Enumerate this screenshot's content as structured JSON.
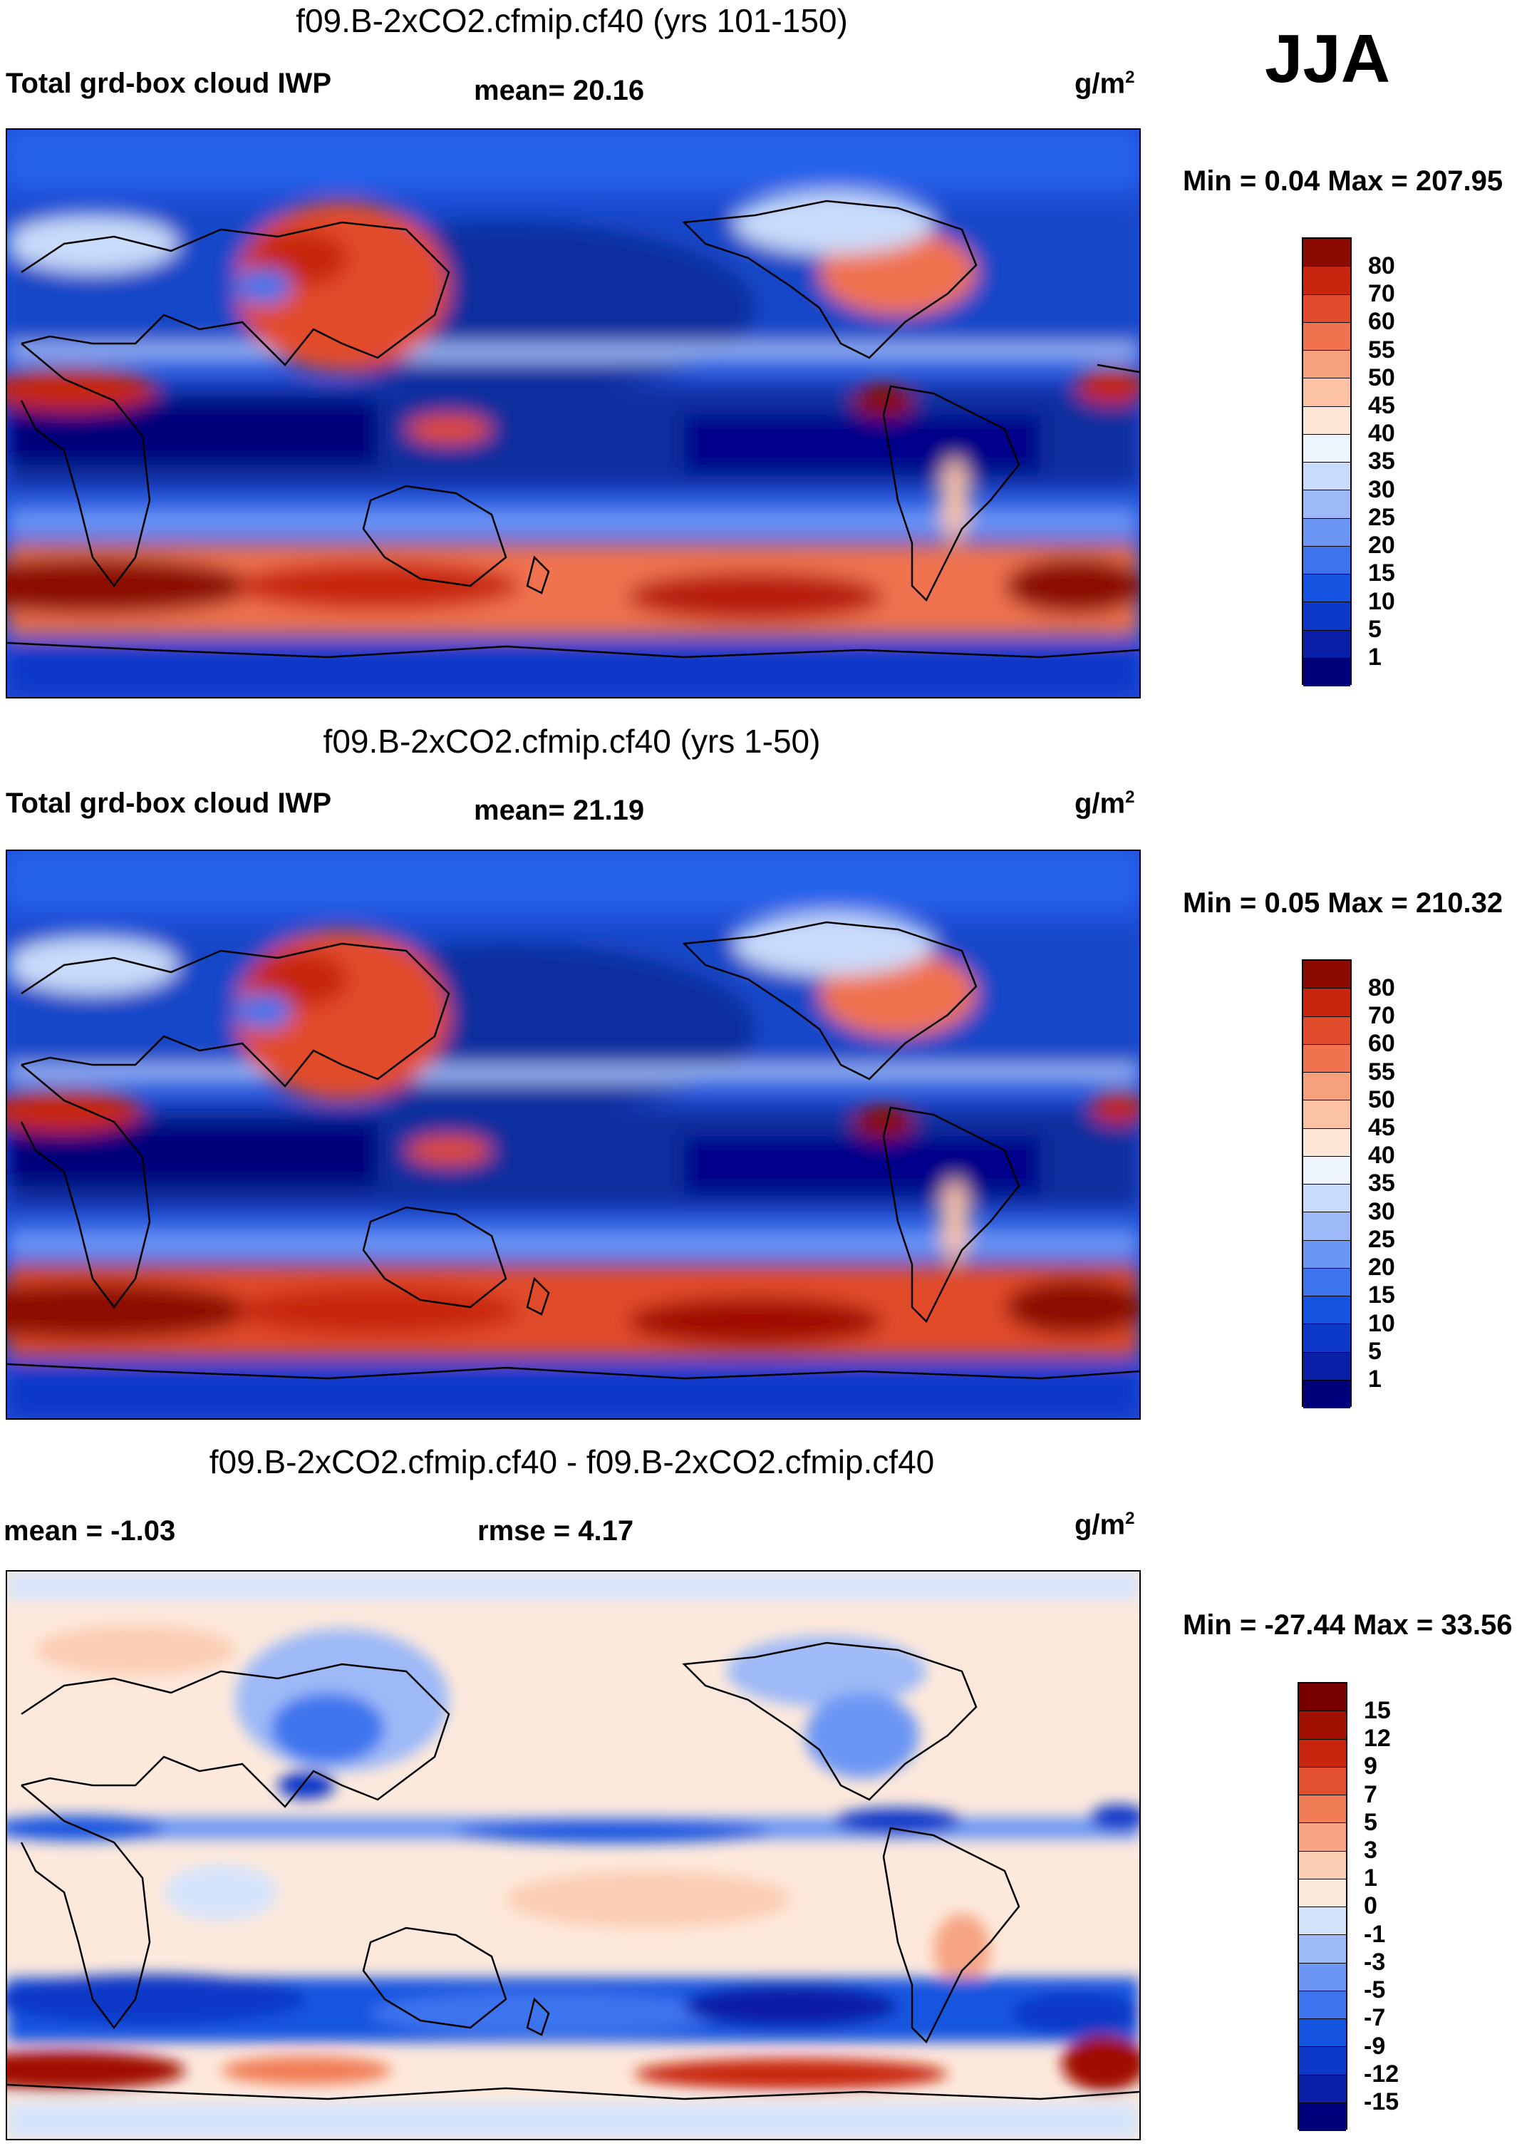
{
  "season": "JJA",
  "panels": [
    {
      "title": "f09.B-2xCO2.cfmip.cf40 (yrs 101-150)",
      "left_label": "Total grd-box cloud IWP",
      "center_label": "mean=  20.16",
      "units_base": "g/m",
      "units_exp": "2",
      "minmax": "Min =   0.04 Max = 207.95"
    },
    {
      "title": "f09.B-2xCO2.cfmip.cf40 (yrs 1-50)",
      "left_label": "Total grd-box cloud IWP",
      "center_label": "mean=  21.19",
      "units_base": "g/m",
      "units_exp": "2",
      "minmax": "Min =   0.05 Max = 210.32"
    },
    {
      "title": "f09.B-2xCO2.cfmip.cf40 - f09.B-2xCO2.cfmip.cf40",
      "left_label": "mean =  -1.03",
      "center_label": "rmse =    4.17",
      "units_base": "g/m",
      "units_exp": "2",
      "minmax": "Min = -27.44 Max =  33.56"
    }
  ],
  "chart_data": [
    {
      "type": "heatmap",
      "title": "f09.B-2xCO2.cfmip.cf40 (yrs 101-150)",
      "variable": "Total grd-box cloud IWP",
      "units": "g/m2",
      "mean": 20.16,
      "min": 0.04,
      "max": 207.95,
      "levels": [
        "1",
        "5",
        "10",
        "15",
        "20",
        "25",
        "30",
        "35",
        "40",
        "45",
        "50",
        "55",
        "60",
        "70",
        "80"
      ],
      "colors": [
        "#00007a",
        "#0a1fa8",
        "#0d39c8",
        "#1554e0",
        "#3d74ee",
        "#6c96f4",
        "#9db9f7",
        "#c9dbfa",
        "#eef4fd",
        "#fde6d6",
        "#fbc3a4",
        "#f6a07c",
        "#f0724f",
        "#e24b2c",
        "#c8260f",
        "#8c0a00"
      ]
    },
    {
      "type": "heatmap",
      "title": "f09.B-2xCO2.cfmip.cf40 (yrs 1-50)",
      "variable": "Total grd-box cloud IWP",
      "units": "g/m2",
      "mean": 21.19,
      "min": 0.05,
      "max": 210.32,
      "levels": [
        "1",
        "5",
        "10",
        "15",
        "20",
        "25",
        "30",
        "35",
        "40",
        "45",
        "50",
        "55",
        "60",
        "70",
        "80"
      ],
      "colors": [
        "#00007a",
        "#0a1fa8",
        "#0d39c8",
        "#1554e0",
        "#3d74ee",
        "#6c96f4",
        "#9db9f7",
        "#c9dbfa",
        "#eef4fd",
        "#fde6d6",
        "#fbc3a4",
        "#f6a07c",
        "#f0724f",
        "#e24b2c",
        "#c8260f",
        "#8c0a00"
      ]
    },
    {
      "type": "heatmap",
      "title": "f09.B-2xCO2.cfmip.cf40 - f09.B-2xCO2.cfmip.cf40",
      "variable": "difference",
      "units": "g/m2",
      "mean": -1.03,
      "rmse": 4.17,
      "min": -27.44,
      "max": 33.56,
      "levels": [
        "-15",
        "-12",
        "-9",
        "-7",
        "-5",
        "-3",
        "-1",
        "0",
        "1",
        "3",
        "5",
        "7",
        "9",
        "12",
        "15"
      ],
      "colors": [
        "#00007a",
        "#0a1fa8",
        "#0d39c8",
        "#1554e0",
        "#3d74ee",
        "#6c96f4",
        "#9db9f7",
        "#d6e4fb",
        "#fde9dc",
        "#fbcdb3",
        "#f6a482",
        "#f07c55",
        "#e2502f",
        "#c8260f",
        "#a01000",
        "#7a0000"
      ]
    }
  ]
}
